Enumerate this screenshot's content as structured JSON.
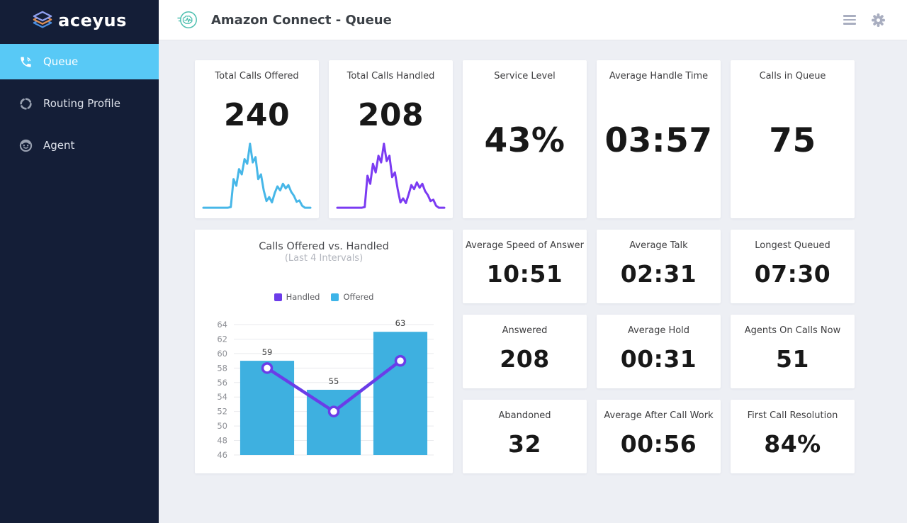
{
  "brand": {
    "name": "aceyus"
  },
  "sidebar": {
    "items": [
      {
        "label": "Queue",
        "icon": "phone-icon",
        "active": true
      },
      {
        "label": "Routing Profile",
        "icon": "routing-icon",
        "active": false
      },
      {
        "label": "Agent",
        "icon": "agent-icon",
        "active": false
      }
    ]
  },
  "header": {
    "title": "Amazon Connect - Queue",
    "icons": [
      "amazon-connect-icon",
      "menu-icon",
      "gear-icon"
    ]
  },
  "kpi_cards": [
    {
      "label": "Total Calls Offered",
      "value": "240"
    },
    {
      "label": "Total Calls Handled",
      "value": "208"
    },
    {
      "label": "Service Level",
      "value": "43%"
    },
    {
      "label": "Average Handle Time",
      "value": "03:57"
    },
    {
      "label": "Calls in Queue",
      "value": "75"
    },
    {
      "label": "Average Speed of Answer",
      "value": "10:51"
    },
    {
      "label": "Average Talk",
      "value": "02:31"
    },
    {
      "label": "Longest Queued",
      "value": "07:30"
    },
    {
      "label": "Answered",
      "value": "208"
    },
    {
      "label": "Average Hold",
      "value": "00:31"
    },
    {
      "label": "Agents On Calls Now",
      "value": "51"
    },
    {
      "label": "Abandoned",
      "value": "32"
    },
    {
      "label": "Average After Call Work",
      "value": "00:56"
    },
    {
      "label": "First Call Resolution",
      "value": "84%"
    }
  ],
  "sparklines": {
    "offered": {
      "color": "#47b7e8",
      "values": [
        2,
        2,
        2,
        2,
        2,
        2,
        2,
        2,
        2,
        2,
        3,
        45,
        35,
        60,
        52,
        75,
        68,
        98,
        70,
        78,
        45,
        52,
        28,
        12,
        18,
        10,
        24,
        34,
        28,
        38,
        31,
        36,
        26,
        20,
        11,
        13,
        5,
        2,
        2,
        2
      ]
    },
    "handled": {
      "color": "#7b3bf2",
      "values": [
        2,
        2,
        2,
        2,
        2,
        2,
        2,
        2,
        2,
        2,
        3,
        50,
        38,
        68,
        55,
        80,
        70,
        98,
        72,
        80,
        48,
        55,
        30,
        10,
        16,
        9,
        22,
        36,
        30,
        40,
        32,
        38,
        27,
        21,
        12,
        14,
        5,
        2,
        2,
        2
      ]
    }
  },
  "chart_data": {
    "type": "bar",
    "title": "Calls Offered vs. Handled",
    "subtitle": "(Last 4 Intervals)",
    "categories": [
      "",
      "",
      ""
    ],
    "series": [
      {
        "name": "Offered",
        "type": "bar",
        "color": "#3eb0e0",
        "values": [
          59,
          55,
          63
        ]
      },
      {
        "name": "Handled",
        "type": "line",
        "color": "#6a3de8",
        "values": [
          58,
          52,
          59
        ]
      }
    ],
    "legend": [
      {
        "label": "Handled",
        "color": "#6c3ce9"
      },
      {
        "label": "Offered",
        "color": "#3db4e8"
      }
    ],
    "ylim": [
      46,
      64
    ],
    "ytick_step": 2,
    "grid": true,
    "legend_position": "top",
    "bar_label_color": "#3a3a3a",
    "tick_color": "#8e9096",
    "gridline_color": "#e9eaee"
  },
  "colors": {
    "sidebar_bg": "#141e37",
    "active_item_bg": "#58c9f6",
    "main_bg": "#edeff4",
    "accent_teal": "#4fc0b0"
  }
}
